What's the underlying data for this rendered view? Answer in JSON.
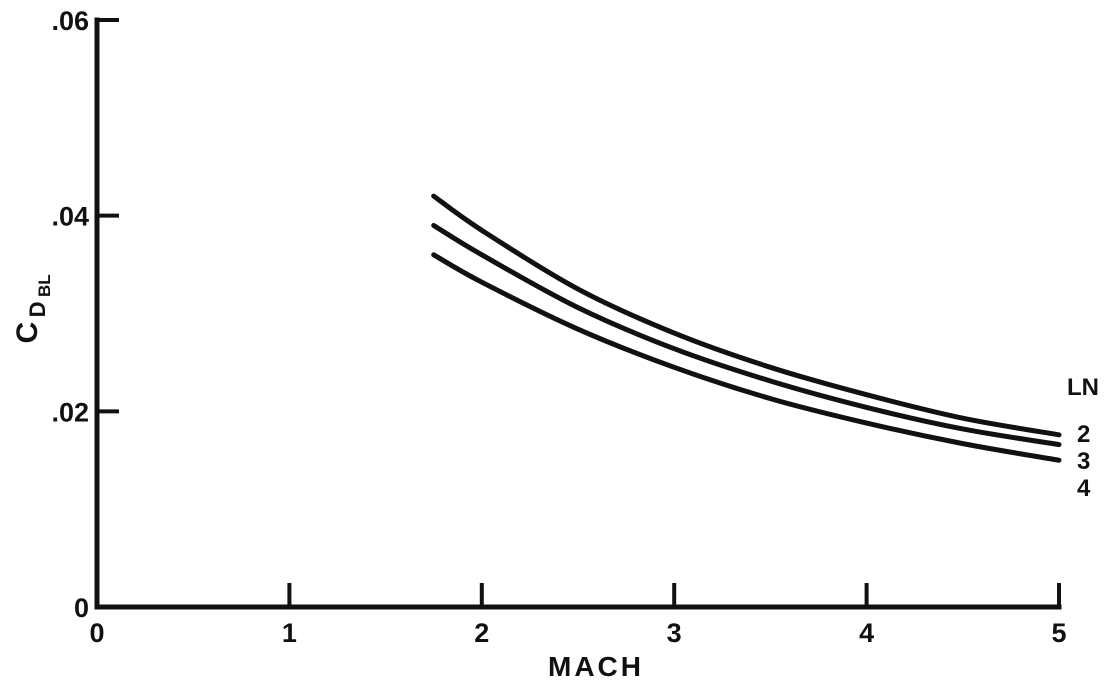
{
  "chart_data": {
    "type": "line",
    "title": "",
    "xlabel": "MACH",
    "ylabel": {
      "main": "C",
      "sub": "D",
      "subsub": "BL"
    },
    "xlim": [
      0,
      5
    ],
    "ylim": [
      0,
      0.06
    ],
    "x_ticks": [
      {
        "value": 0,
        "label": "0"
      },
      {
        "value": 1,
        "label": "1"
      },
      {
        "value": 2,
        "label": "2"
      },
      {
        "value": 3,
        "label": "3"
      },
      {
        "value": 4,
        "label": "4"
      },
      {
        "value": 5,
        "label": "5"
      }
    ],
    "y_ticks": [
      {
        "value": 0,
        "label": "0"
      },
      {
        "value": 0.02,
        "label": ".02"
      },
      {
        "value": 0.04,
        "label": ".04"
      },
      {
        "value": 0.06,
        "label": ".06"
      }
    ],
    "grid": false,
    "legend_title": "LN",
    "legend_placement": "right end of curves",
    "series": [
      {
        "name": "2",
        "x": [
          1.75,
          2.0,
          2.5,
          3.0,
          3.5,
          4.0,
          4.5,
          5.0
        ],
        "y": [
          0.042,
          0.0385,
          0.0325,
          0.028,
          0.0245,
          0.0217,
          0.0193,
          0.0176
        ]
      },
      {
        "name": "3",
        "x": [
          1.75,
          2.0,
          2.5,
          3.0,
          3.5,
          4.0,
          4.5,
          5.0
        ],
        "y": [
          0.039,
          0.036,
          0.0306,
          0.0264,
          0.0231,
          0.0204,
          0.0182,
          0.0166
        ]
      },
      {
        "name": "4",
        "x": [
          1.75,
          2.0,
          2.5,
          3.0,
          3.5,
          4.0,
          4.5,
          5.0
        ],
        "y": [
          0.036,
          0.0332,
          0.0284,
          0.0245,
          0.0213,
          0.0188,
          0.0167,
          0.015
        ]
      }
    ]
  }
}
